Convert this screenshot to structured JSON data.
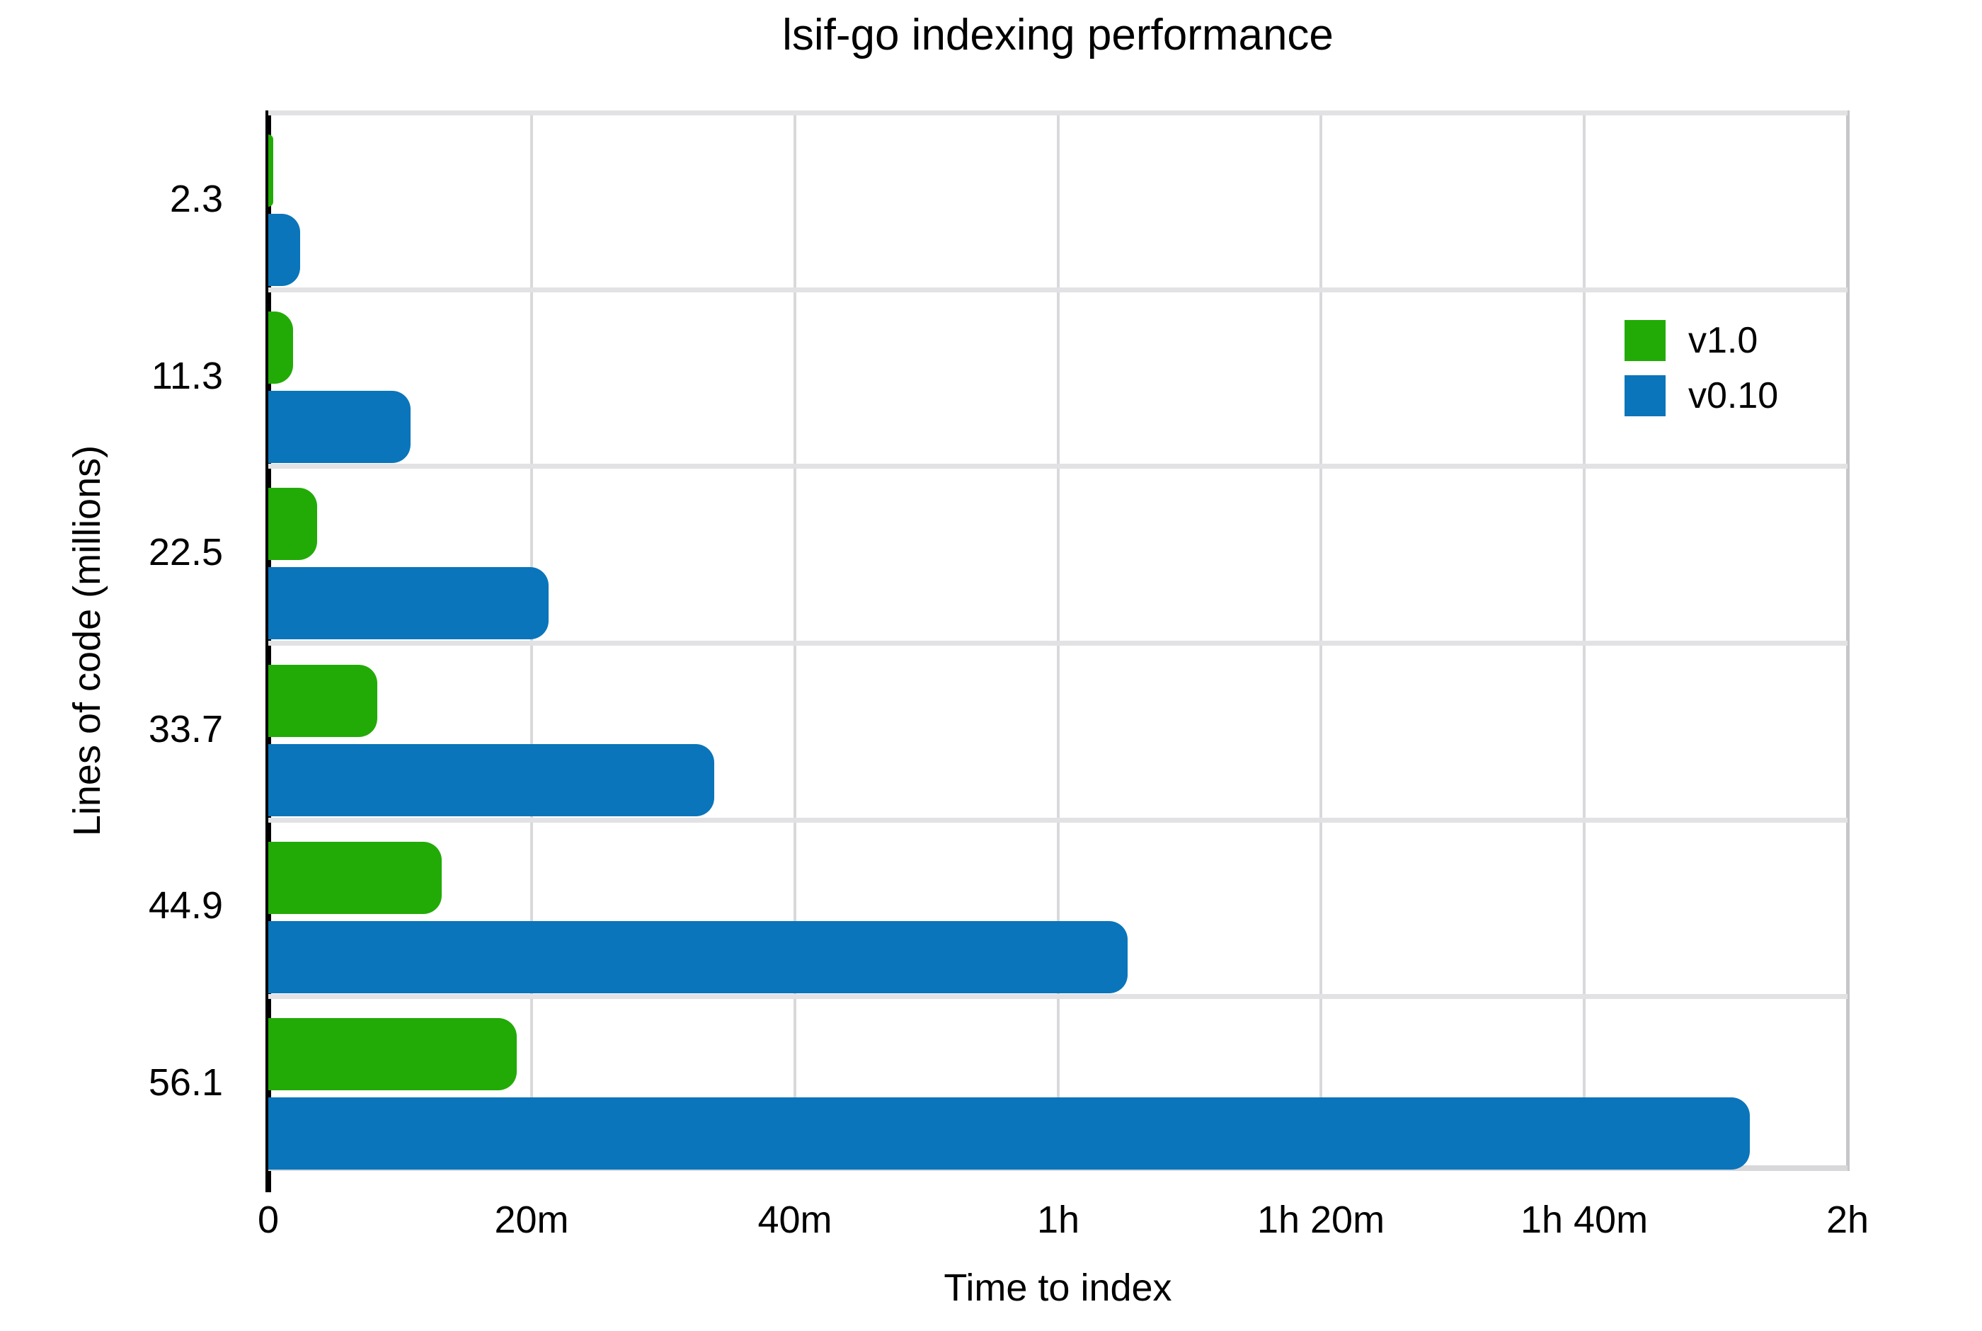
{
  "chart_data": {
    "type": "bar",
    "orientation": "horizontal",
    "title": "lsif-go indexing performance",
    "xlabel": "Time to index",
    "ylabel": "Lines of code (millions)",
    "categories": [
      "2.3",
      "11.3",
      "22.5",
      "33.7",
      "44.9",
      "56.1"
    ],
    "series": [
      {
        "name": "v1.0",
        "color": "#22ab06",
        "values_minutes": [
          0.4,
          1.9,
          3.7,
          8.3,
          13.2,
          18.9
        ]
      },
      {
        "name": "v0.10",
        "color": "#0a75ba",
        "values_minutes": [
          2.4,
          10.8,
          21.3,
          33.9,
          65.3,
          112.6
        ]
      }
    ],
    "x_axis": {
      "max_minutes": 120,
      "ticks": [
        {
          "label": "0",
          "minutes": 0
        },
        {
          "label": "20m",
          "minutes": 20
        },
        {
          "label": "40m",
          "minutes": 40
        },
        {
          "label": "1h",
          "minutes": 60
        },
        {
          "label": "1h 20m",
          "minutes": 80
        },
        {
          "label": "1h 40m",
          "minutes": 100
        },
        {
          "label": "2h",
          "minutes": 120
        }
      ]
    },
    "grid": true,
    "legend_position": "top-right",
    "colors": {
      "axis_line": "#000000",
      "gridline": "#d9d9dc",
      "row_separator": "#e2e2e5",
      "text": "#000000",
      "background": "#ffffff"
    }
  }
}
